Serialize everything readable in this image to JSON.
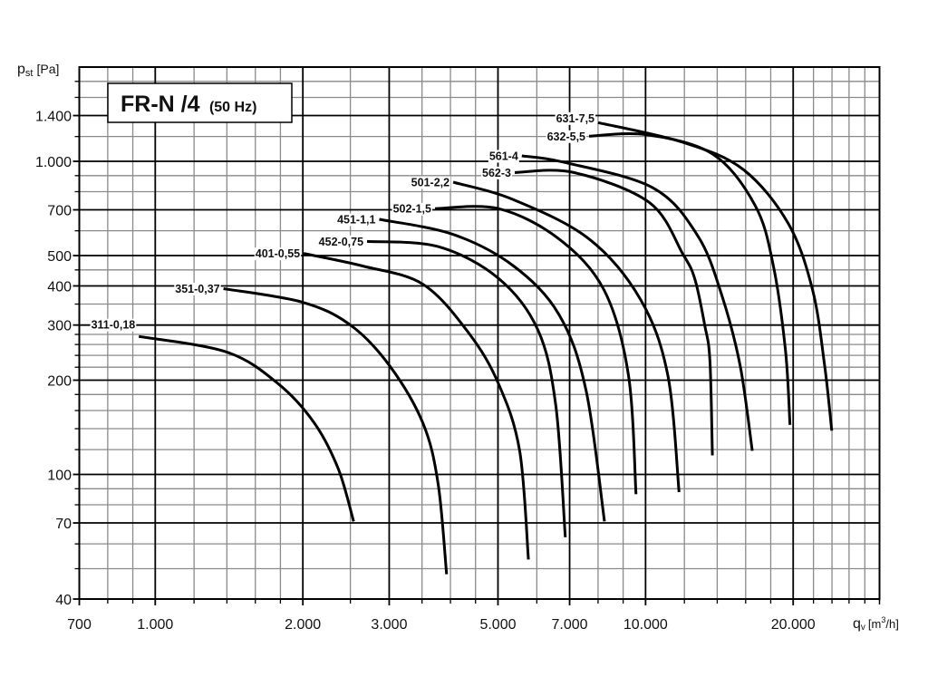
{
  "chart_data": {
    "type": "line",
    "title": "FR-N /4",
    "subtitle": "(50 Hz)",
    "xlabel_parts": [
      "q",
      "v",
      "[m",
      "3",
      "/h]"
    ],
    "ylabel_parts": [
      "p",
      "st",
      "[Pa]"
    ],
    "x_scale": "log",
    "y_scale": "log",
    "xlim": [
      700,
      30000
    ],
    "ylim": [
      40,
      2000
    ],
    "grid": true,
    "x_ticks": [
      {
        "value": 700,
        "label": "700"
      },
      {
        "value": 1000,
        "label": "1.000"
      },
      {
        "value": 2000,
        "label": "2.000"
      },
      {
        "value": 3000,
        "label": "3.000"
      },
      {
        "value": 5000,
        "label": "5.000"
      },
      {
        "value": 7000,
        "label": "7.000"
      },
      {
        "value": 10000,
        "label": "10.000"
      },
      {
        "value": 20000,
        "label": "20.000"
      }
    ],
    "y_ticks": [
      {
        "value": 40,
        "label": "40"
      },
      {
        "value": 70,
        "label": "70"
      },
      {
        "value": 100,
        "label": "100"
      },
      {
        "value": 200,
        "label": "200"
      },
      {
        "value": 300,
        "label": "300"
      },
      {
        "value": 400,
        "label": "400"
      },
      {
        "value": 500,
        "label": "500"
      },
      {
        "value": 700,
        "label": "700"
      },
      {
        "value": 1000,
        "label": "1.000"
      },
      {
        "value": 1400,
        "label": "1.400"
      }
    ],
    "x_minor_gridlines": [
      800,
      900,
      1200,
      1400,
      1600,
      1800,
      2500,
      3500,
      4000,
      4500,
      6000,
      8000,
      9000,
      12000,
      14000,
      16000,
      18000,
      22000,
      24000,
      26000,
      28000
    ],
    "y_minor_gridlines": [
      50,
      60,
      80,
      90,
      120,
      140,
      160,
      180,
      220,
      240,
      260,
      280,
      350,
      450,
      600,
      800,
      900,
      1200,
      1600,
      1800
    ],
    "series": [
      {
        "name": "311-0,18",
        "label_dy": -13,
        "points": [
          [
            926,
            276
          ],
          [
            1398,
            246
          ],
          [
            1780,
            195
          ],
          [
            2110,
            146
          ],
          [
            2363,
            104
          ],
          [
            2538,
            70.8
          ]
        ]
      },
      {
        "name": "351-0,37",
        "label_dy": 0,
        "points": [
          [
            1378,
            392
          ],
          [
            1994,
            355
          ],
          [
            2501,
            300
          ],
          [
            3008,
            222
          ],
          [
            3514,
            146
          ],
          [
            3775,
            93.5
          ],
          [
            3928,
            48
          ]
        ]
      },
      {
        "name": "401-0,55",
        "label_dy": 0,
        "points": [
          [
            2008,
            508
          ],
          [
            2648,
            463
          ],
          [
            3514,
            405
          ],
          [
            4350,
            284
          ],
          [
            5012,
            195
          ],
          [
            5535,
            119
          ],
          [
            5770,
            53.5
          ]
        ]
      },
      {
        "name": "452-0,75",
        "label_dy": 0,
        "points": [
          [
            2704,
            555
          ],
          [
            3775,
            534
          ],
          [
            5012,
            423
          ],
          [
            6028,
            290
          ],
          [
            6560,
            166
          ],
          [
            6860,
            63
          ]
        ]
      },
      {
        "name": "451-1,1",
        "label_dy": 0,
        "points": [
          [
            2863,
            653
          ],
          [
            4052,
            584
          ],
          [
            5380,
            463
          ],
          [
            6660,
            324
          ],
          [
            7560,
            186
          ],
          [
            8245,
            70.8
          ]
        ]
      },
      {
        "name": "502-1,5",
        "label_dy": 0,
        "points": [
          [
            3720,
            706
          ],
          [
            5012,
            706
          ],
          [
            6660,
            565
          ],
          [
            8236,
            387
          ],
          [
            9226,
            208
          ],
          [
            9560,
            86.5
          ]
        ]
      },
      {
        "name": "501-2,2",
        "label_dy": 0,
        "points": [
          [
            4052,
            858
          ],
          [
            5380,
            754
          ],
          [
            7670,
            565
          ],
          [
            9766,
            362
          ],
          [
            11095,
            208
          ],
          [
            11705,
            87.8
          ]
        ]
      },
      {
        "name": "562-3",
        "label_dy": 0,
        "points": [
          [
            5410,
            921
          ],
          [
            7144,
            921
          ],
          [
            10187,
            738
          ],
          [
            11910,
            506
          ],
          [
            12608,
            420
          ],
          [
            13200,
            300
          ],
          [
            13527,
            232
          ],
          [
            13685,
            115
          ]
        ]
      },
      {
        "name": "561-4",
        "label_dy": 0,
        "points": [
          [
            5593,
            1041
          ],
          [
            6755,
            996
          ],
          [
            10333,
            824
          ],
          [
            12783,
            578
          ],
          [
            14322,
            371
          ],
          [
            15596,
            222
          ],
          [
            16506,
            119
          ]
        ]
      },
      {
        "name": "632-5,5",
        "label_dy": 0,
        "points": [
          [
            7670,
            1203
          ],
          [
            10045,
            1216
          ],
          [
            13727,
            1053
          ],
          [
            16737,
            721
          ],
          [
            18228,
            463
          ],
          [
            19292,
            248
          ],
          [
            19705,
            144
          ]
        ]
      },
      {
        "name": "631-7,5",
        "label_dy": -5,
        "points": [
          [
            8003,
            1329
          ],
          [
            11910,
            1150
          ],
          [
            15815,
            942
          ],
          [
            19565,
            631
          ],
          [
            21920,
            387
          ],
          [
            23190,
            222
          ],
          [
            23976,
            138
          ]
        ]
      }
    ]
  }
}
